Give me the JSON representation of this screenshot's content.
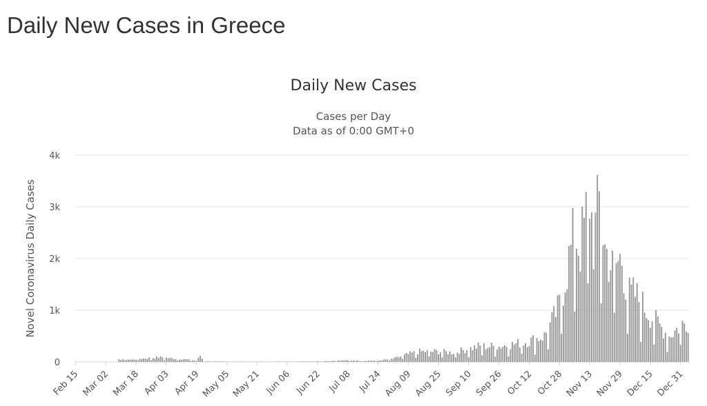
{
  "page_title": "Daily New Cases in Greece",
  "chart_data": {
    "type": "bar",
    "title": "Daily New Cases",
    "subtitle_line1": "Cases per Day",
    "subtitle_line2": "Data as of 0:00 GMT+0",
    "ylabel": "Novel Coronavirus Daily Cases",
    "xlabel": "",
    "ylim": [
      0,
      4000
    ],
    "y_ticks": [
      {
        "value": 0,
        "label": "0"
      },
      {
        "value": 1000,
        "label": "1k"
      },
      {
        "value": 2000,
        "label": "2k"
      },
      {
        "value": 3000,
        "label": "3k"
      },
      {
        "value": 4000,
        "label": "4k"
      }
    ],
    "x_tick_labels": [
      "Feb 15",
      "Mar 02",
      "Mar 18",
      "Apr 03",
      "Apr 19",
      "May 05",
      "May 21",
      "Jun 06",
      "Jun 22",
      "Jul 08",
      "Jul 24",
      "Aug 09",
      "Aug 25",
      "Sep 10",
      "Sep 26",
      "Oct 12",
      "Oct 28",
      "Nov 13",
      "Nov 29",
      "Dec 15",
      "Dec 31"
    ],
    "x_start": "Feb 15",
    "grid": true,
    "legend": "none",
    "bar_color": "#999999",
    "grid_color": "#e6e6e6",
    "axis_color": "#ccd6eb",
    "anchors": [
      [
        "Feb 15",
        0
      ],
      [
        "Mar 08",
        0
      ],
      [
        "Mar 09",
        40
      ],
      [
        "Mar 12",
        60
      ],
      [
        "Mar 15",
        40
      ],
      [
        "Mar 20",
        60
      ],
      [
        "Mar 27",
        80
      ],
      [
        "Apr 01",
        90
      ],
      [
        "Apr 05",
        70
      ],
      [
        "Apr 10",
        60
      ],
      [
        "Apr 15",
        40
      ],
      [
        "Apr 19",
        20
      ],
      [
        "Apr 21",
        120
      ],
      [
        "Apr 23",
        10
      ],
      [
        "May 05",
        5
      ],
      [
        "May 21",
        5
      ],
      [
        "Jun 06",
        5
      ],
      [
        "Jun 22",
        10
      ],
      [
        "Jul 08",
        30
      ],
      [
        "Jul 15",
        20
      ],
      [
        "Jul 24",
        25
      ],
      [
        "Aug 01",
        60
      ],
      [
        "Aug 09",
        150
      ],
      [
        "Aug 15",
        200
      ],
      [
        "Aug 25",
        200
      ],
      [
        "Sep 01",
        180
      ],
      [
        "Sep 10",
        250
      ],
      [
        "Sep 15",
        300
      ],
      [
        "Sep 26",
        300
      ],
      [
        "Oct 05",
        350
      ],
      [
        "Oct 12",
        400
      ],
      [
        "Oct 20",
        500
      ],
      [
        "Oct 25",
        850
      ],
      [
        "Oct 28",
        1100
      ],
      [
        "Nov 01",
        1800
      ],
      [
        "Nov 05",
        2500
      ],
      [
        "Nov 08",
        2200
      ],
      [
        "Nov 11",
        2800
      ],
      [
        "Nov 13",
        3200
      ],
      [
        "Nov 15",
        2300
      ],
      [
        "Nov 18",
        3100
      ],
      [
        "Nov 21",
        2200
      ],
      [
        "Nov 25",
        1800
      ],
      [
        "Nov 30",
        2000
      ],
      [
        "Dec 03",
        1300
      ],
      [
        "Dec 07",
        1300
      ],
      [
        "Dec 11",
        1100
      ],
      [
        "Dec 15",
        900
      ],
      [
        "Dec 20",
        700
      ],
      [
        "Dec 25",
        500
      ],
      [
        "Dec 31",
        700
      ],
      [
        "Jan 04",
        800
      ]
    ]
  }
}
